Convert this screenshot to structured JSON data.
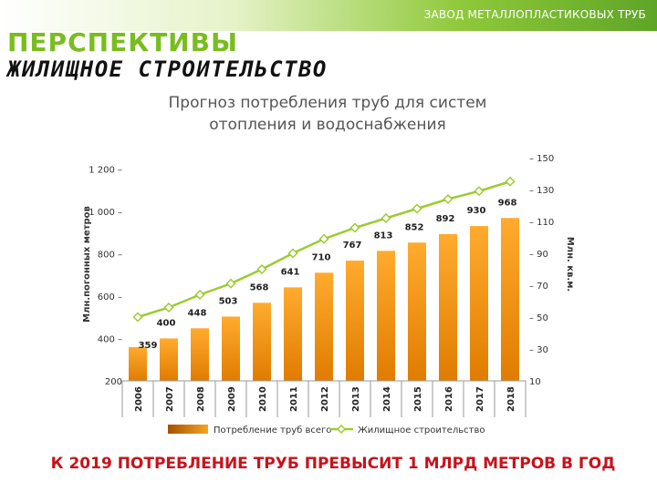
{
  "header": {
    "company": "ЗАВОД МЕТАЛЛОПЛАСТИКОВЫХ ТРУБ",
    "title": "ПЕРСПЕКТИВЫ",
    "subtitle": "ЖИЛИЩНОЕ СТРОИТЕЛЬСТВО"
  },
  "conclusion": "К 2019 ПОТРЕБЛЕНИЕ ТРУБ ПРЕВЫСИТ 1 МЛРД МЕТРОВ В ГОД",
  "colors": {
    "bar": "#f0930c",
    "bar_dark": "#b35f00",
    "line": "#9ccb32",
    "accent": "#79bd1e",
    "conclusion": "#c8121b"
  },
  "chart_data": {
    "type": "bar",
    "title": "Прогноз потребления труб для систем отопления и водоснабжения",
    "title_lines": [
      "Прогноз потребления труб для систем",
      "отопления и водоснабжения"
    ],
    "categories": [
      "2006",
      "2007",
      "2008",
      "2009",
      "2010",
      "2011",
      "2012",
      "2013",
      "2014",
      "2015",
      "2016",
      "2017",
      "2018"
    ],
    "ylabel": "Млн.погонных метров",
    "y2label": "Млн. кв.м.",
    "ylim": [
      200,
      1300
    ],
    "y2lim": [
      10,
      150
    ],
    "yticks": [
      200,
      400,
      600,
      800,
      1000,
      1200
    ],
    "ytick_labels": [
      "200",
      "400 –",
      "600 –",
      "800 –",
      "1 000 –",
      "1 200 –"
    ],
    "y2ticks": [
      10,
      30,
      50,
      70,
      90,
      110,
      130,
      150
    ],
    "y2tick_labels": [
      "10",
      "– 30",
      "– 50",
      "– 70",
      "– 90",
      "– 110",
      "– 130",
      "– 150"
    ],
    "grid": false,
    "legend_position": "bottom",
    "series": [
      {
        "name": "Потребление труб всего",
        "type": "bar",
        "axis": "left",
        "values": [
          359,
          400,
          448,
          503,
          568,
          641,
          710,
          767,
          813,
          852,
          892,
          930,
          968
        ],
        "labels": [
          "359",
          "400",
          "448",
          "503",
          "568",
          "641",
          "710",
          "767",
          "813",
          "852",
          "892",
          "930",
          "968"
        ]
      },
      {
        "name": "Жилищное строительство",
        "type": "line",
        "axis": "right",
        "values": [
          50,
          56,
          64,
          71,
          80,
          90,
          99,
          106,
          112,
          118,
          124,
          129,
          135
        ]
      }
    ]
  }
}
